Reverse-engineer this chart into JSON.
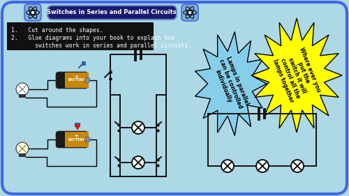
{
  "bg_color": "#add8e6",
  "outer_border_color": "#4169e1",
  "title": "Switches in Series and Parallel Circuits",
  "title_bg": "#1a1a6e",
  "title_color": "white",
  "instruction_bg": "#111111",
  "instruction_color": "white",
  "instructions_line1": "1.   Cut around the shapes.",
  "instructions_line2": "2.   Glue diagrams into your book to explain how\n       switches work in series and parallel circuits.",
  "blue_bubble_text": "Lamps in parallel\ncan be controlled\nindividually",
  "yellow_bubble_text": "Where ever you\nput the\nswitch it will\ncontrol all the\nlamps together",
  "blue_bubble_color": "#87CEEB",
  "yellow_bubble_color": "#ffff00",
  "circuit_color": "#111111",
  "battery_color": "#c8860a",
  "battery_label": "BATTERY"
}
